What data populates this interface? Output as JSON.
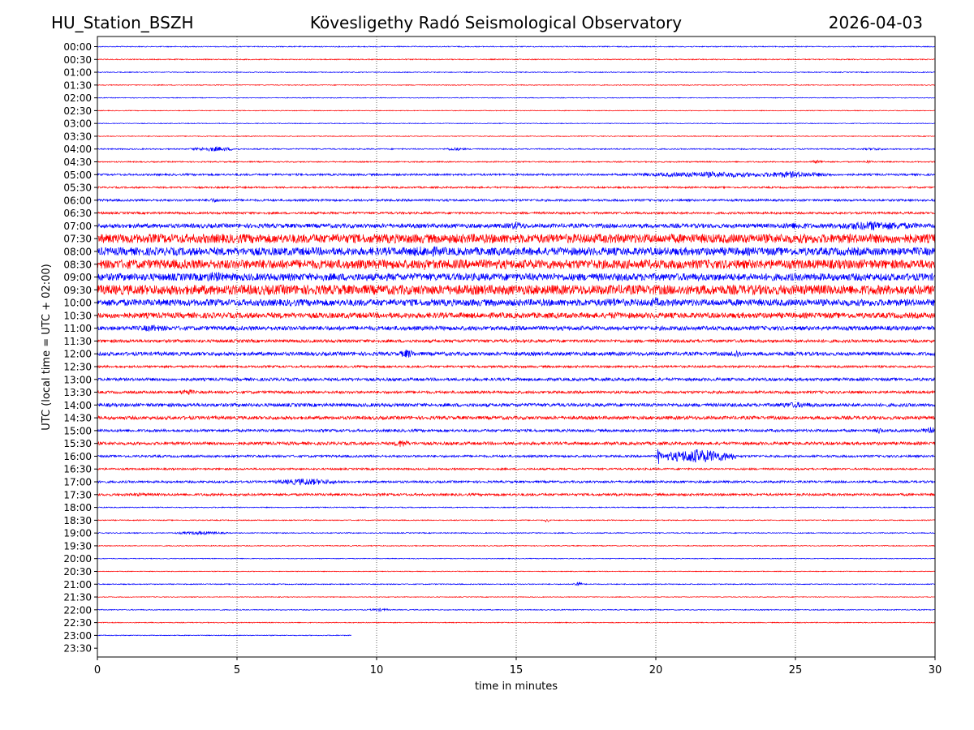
{
  "header": {
    "station": "HU_Station_BSZH",
    "observatory": "Kövesligethy Radó Seismological Observatory",
    "date": "2026-04-03"
  },
  "chart_data": {
    "type": "line",
    "title": "Kövesligethy Radó Seismological Observatory",
    "xlabel": "time in minutes",
    "ylabel": "UTC (local time = UTC + 02:00)",
    "xlim": [
      0,
      30
    ],
    "x_ticks": [
      0,
      5,
      10,
      15,
      20,
      25,
      30
    ],
    "grid": "vertical dotted lines at 5-minute intervals",
    "colors": {
      "even": "#0000ff",
      "odd": "#ff0000"
    },
    "rows": [
      {
        "label": "00:00",
        "noise": 0.08,
        "end": 30
      },
      {
        "label": "00:30",
        "noise": 0.08,
        "end": 30
      },
      {
        "label": "01:00",
        "noise": 0.07,
        "end": 30
      },
      {
        "label": "01:30",
        "noise": 0.07,
        "end": 30
      },
      {
        "label": "02:00",
        "noise": 0.06,
        "end": 30
      },
      {
        "label": "02:30",
        "noise": 0.06,
        "end": 30
      },
      {
        "label": "03:00",
        "noise": 0.06,
        "end": 30
      },
      {
        "label": "03:30",
        "noise": 0.07,
        "end": 30
      },
      {
        "label": "04:00",
        "noise": 0.1,
        "end": 30,
        "bursts": [
          [
            4.2,
            0.9,
            0.4
          ],
          [
            12.8,
            0.4,
            0.3
          ],
          [
            27.8,
            0.5,
            0.25
          ]
        ]
      },
      {
        "label": "04:30",
        "noise": 0.1,
        "end": 30,
        "bursts": [
          [
            25.8,
            0.3,
            0.3
          ],
          [
            27.6,
            0.2,
            0.25
          ]
        ]
      },
      {
        "label": "05:00",
        "noise": 0.16,
        "end": 30,
        "bursts": [
          [
            22.0,
            3.0,
            0.5
          ],
          [
            24.8,
            1.5,
            0.55
          ]
        ]
      },
      {
        "label": "05:30",
        "noise": 0.14,
        "end": 30
      },
      {
        "label": "06:00",
        "noise": 0.18,
        "end": 30,
        "bursts": [
          [
            4.2,
            0.5,
            0.35
          ]
        ]
      },
      {
        "label": "06:30",
        "noise": 0.18,
        "end": 30
      },
      {
        "label": "07:00",
        "noise": 0.35,
        "end": 30,
        "bursts": [
          [
            15.0,
            0.5,
            0.7
          ],
          [
            27.8,
            2.0,
            0.8
          ],
          [
            25.0,
            1.0,
            0.6
          ]
        ]
      },
      {
        "label": "07:30",
        "noise": 0.75,
        "end": 30
      },
      {
        "label": "08:00",
        "noise": 0.65,
        "end": 30,
        "bursts": [
          [
            11.8,
            1.5,
            0.9
          ]
        ]
      },
      {
        "label": "08:30",
        "noise": 0.75,
        "end": 30,
        "bursts": [
          [
            11.7,
            0.4,
            1.0
          ]
        ]
      },
      {
        "label": "09:00",
        "noise": 0.6,
        "end": 30,
        "bursts": [
          [
            4.2,
            0.8,
            0.9
          ]
        ]
      },
      {
        "label": "09:30",
        "noise": 0.8,
        "end": 30
      },
      {
        "label": "10:00",
        "noise": 0.55,
        "end": 30,
        "bursts": [
          [
            18.5,
            0.8,
            0.8
          ],
          [
            20.0,
            0.5,
            0.8
          ]
        ]
      },
      {
        "label": "10:30",
        "noise": 0.45,
        "end": 30,
        "bursts": [
          [
            18.5,
            0.6,
            0.6
          ]
        ]
      },
      {
        "label": "11:00",
        "noise": 0.35,
        "end": 30,
        "bursts": [
          [
            2.0,
            0.8,
            0.6
          ]
        ]
      },
      {
        "label": "11:30",
        "noise": 0.25,
        "end": 30
      },
      {
        "label": "12:00",
        "noise": 0.3,
        "end": 30,
        "bursts": [
          [
            11.1,
            0.3,
            0.8
          ],
          [
            22.9,
            0.3,
            0.7
          ]
        ]
      },
      {
        "label": "12:30",
        "noise": 0.18,
        "end": 30
      },
      {
        "label": "13:00",
        "noise": 0.25,
        "end": 30
      },
      {
        "label": "13:30",
        "noise": 0.22,
        "end": 30,
        "bursts": [
          [
            3.2,
            0.3,
            0.6
          ]
        ]
      },
      {
        "label": "14:00",
        "noise": 0.28,
        "end": 30,
        "bursts": [
          [
            25.0,
            1.2,
            0.5
          ]
        ]
      },
      {
        "label": "14:30",
        "noise": 0.28,
        "end": 30
      },
      {
        "label": "15:00",
        "noise": 0.22,
        "end": 30,
        "bursts": [
          [
            28.0,
            0.15,
            0.6
          ],
          [
            29.8,
            0.3,
            0.7
          ]
        ]
      },
      {
        "label": "15:30",
        "noise": 0.25,
        "end": 30,
        "bursts": [
          [
            10.9,
            0.3,
            0.7
          ]
        ]
      },
      {
        "label": "16:00",
        "noise": 0.18,
        "end": 30,
        "bursts": [
          [
            21.5,
            1.4,
            1.2
          ],
          [
            20.1,
            0.06,
            1.6
          ]
        ]
      },
      {
        "label": "16:30",
        "noise": 0.15,
        "end": 30
      },
      {
        "label": "17:00",
        "noise": 0.18,
        "end": 30,
        "bursts": [
          [
            7.5,
            1.2,
            0.6
          ]
        ]
      },
      {
        "label": "17:30",
        "noise": 0.2,
        "end": 30,
        "bursts": [
          [
            1.5,
            1.0,
            0.3
          ]
        ]
      },
      {
        "label": "18:00",
        "noise": 0.08,
        "end": 30
      },
      {
        "label": "18:30",
        "noise": 0.08,
        "end": 30,
        "bursts": [
          [
            16.1,
            0.08,
            0.4
          ]
        ]
      },
      {
        "label": "19:00",
        "noise": 0.08,
        "end": 30,
        "bursts": [
          [
            3.7,
            1.0,
            0.3
          ]
        ]
      },
      {
        "label": "19:30",
        "noise": 0.07,
        "end": 30
      },
      {
        "label": "20:00",
        "noise": 0.06,
        "end": 30
      },
      {
        "label": "20:30",
        "noise": 0.06,
        "end": 30
      },
      {
        "label": "21:00",
        "noise": 0.08,
        "end": 30,
        "bursts": [
          [
            17.2,
            0.15,
            0.5
          ]
        ]
      },
      {
        "label": "21:30",
        "noise": 0.06,
        "end": 30
      },
      {
        "label": "22:00",
        "noise": 0.08,
        "end": 30,
        "bursts": [
          [
            10.1,
            0.4,
            0.25
          ]
        ]
      },
      {
        "label": "22:30",
        "noise": 0.07,
        "end": 30
      },
      {
        "label": "23:00",
        "noise": 0.07,
        "end": 9.1
      },
      {
        "label": "23:30",
        "noise": 0,
        "end": 0
      }
    ]
  }
}
